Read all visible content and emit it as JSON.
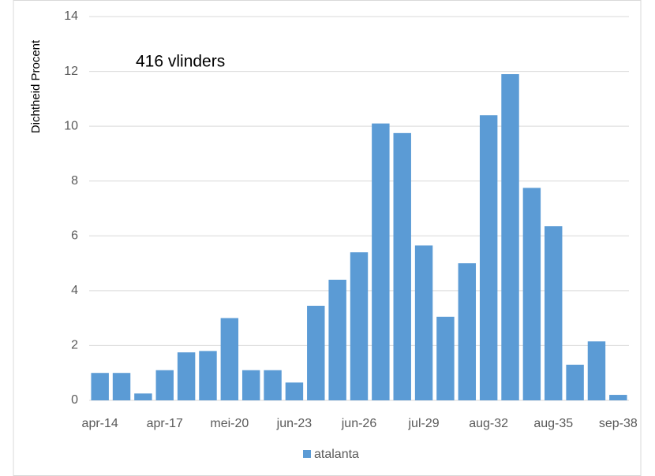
{
  "chart_data": {
    "type": "bar",
    "annotation": "416 vlinders",
    "y_label": "Dichtheid Procent",
    "categories": [
      "apr-14",
      null,
      null,
      "apr-17",
      null,
      null,
      "mei-20",
      null,
      null,
      "jun-23",
      null,
      null,
      "jun-26",
      null,
      null,
      "jul-29",
      null,
      null,
      "aug-32",
      null,
      null,
      "aug-35",
      null,
      null,
      "sep-38"
    ],
    "series": [
      {
        "name": "atalanta",
        "color": "#5b9bd5",
        "values": [
          1.0,
          1.0,
          0.25,
          1.1,
          1.75,
          1.8,
          3.0,
          1.1,
          1.1,
          0.65,
          3.45,
          4.4,
          5.4,
          10.1,
          9.75,
          5.65,
          3.05,
          5.0,
          10.4,
          11.9,
          7.75,
          6.35,
          1.3,
          2.15,
          0.2
        ]
      }
    ],
    "ylim": [
      0,
      14
    ],
    "yticks": [
      0,
      2,
      4,
      6,
      8,
      10,
      12,
      14
    ],
    "grid": true,
    "legend": "bottom"
  }
}
